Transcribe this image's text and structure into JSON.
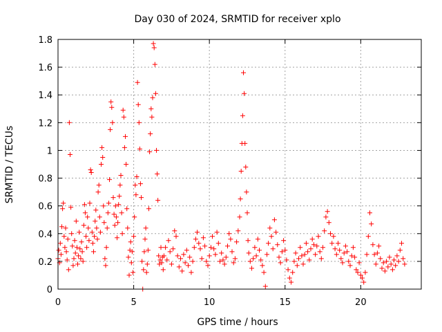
{
  "chart_data": {
    "type": "scatter",
    "title": "Day 030 of 2024, SRMTID for receiver xplo",
    "xlabel": "GPS time / hours",
    "ylabel": "SRMTID / TECUs",
    "xlim": [
      0,
      24
    ],
    "ylim": [
      0,
      1.8
    ],
    "xticks": [
      0,
      5,
      10,
      15,
      20
    ],
    "xtick_labels": [
      "0",
      "5",
      "10",
      "15",
      "20"
    ],
    "yticks": [
      0,
      0.2,
      0.4,
      0.6,
      0.8,
      1,
      1.2,
      1.4,
      1.6,
      1.8
    ],
    "ytick_labels": [
      "0",
      "0.2",
      "0.4",
      "0.6",
      "0.8",
      "1",
      "1.2",
      "1.4",
      "1.6",
      "1.8"
    ],
    "grid": true,
    "marker": "+",
    "color": "#ff0000",
    "series": [
      {
        "name": "SRMTID",
        "points": [
          [
            0.0,
            0.22
          ],
          [
            0.05,
            0.28
          ],
          [
            0.1,
            0.19
          ],
          [
            0.15,
            0.33
          ],
          [
            0.2,
            0.25
          ],
          [
            0.25,
            0.45
          ],
          [
            0.3,
            0.58
          ],
          [
            0.35,
            0.62
          ],
          [
            0.4,
            0.38
          ],
          [
            0.45,
            0.3
          ],
          [
            0.5,
            0.44
          ],
          [
            0.55,
            0.27
          ],
          [
            0.6,
            0.21
          ],
          [
            0.65,
            0.36
          ],
          [
            0.7,
            0.14
          ],
          [
            0.75,
            1.2
          ],
          [
            0.8,
            0.97
          ],
          [
            0.85,
            0.59
          ],
          [
            0.9,
            0.4
          ],
          [
            0.95,
            0.31
          ],
          [
            1.0,
            0.17
          ],
          [
            1.05,
            0.22
          ],
          [
            1.1,
            0.35
          ],
          [
            1.15,
            0.26
          ],
          [
            1.2,
            0.49
          ],
          [
            1.25,
            0.3
          ],
          [
            1.3,
            0.18
          ],
          [
            1.35,
            0.24
          ],
          [
            1.4,
            0.41
          ],
          [
            1.45,
            0.29
          ],
          [
            1.5,
            0.22
          ],
          [
            1.55,
            0.34
          ],
          [
            1.6,
            0.27
          ],
          [
            1.65,
            0.2
          ],
          [
            1.7,
            0.46
          ],
          [
            1.75,
            0.61
          ],
          [
            1.8,
            0.55
          ],
          [
            1.85,
            0.38
          ],
          [
            1.9,
            0.3
          ],
          [
            1.95,
            0.52
          ],
          [
            2.0,
            0.44
          ],
          [
            2.05,
            0.35
          ],
          [
            2.1,
            0.62
          ],
          [
            2.15,
            0.86
          ],
          [
            2.2,
            0.84
          ],
          [
            2.25,
            0.41
          ],
          [
            2.3,
            0.33
          ],
          [
            2.35,
            0.27
          ],
          [
            2.4,
            0.38
          ],
          [
            2.45,
            0.49
          ],
          [
            2.5,
            0.57
          ],
          [
            2.55,
            0.44
          ],
          [
            2.6,
            0.36
          ],
          [
            2.65,
            0.7
          ],
          [
            2.7,
            0.75
          ],
          [
            2.75,
            0.52
          ],
          [
            2.8,
            0.41
          ],
          [
            2.85,
            0.9
          ],
          [
            2.9,
            1.02
          ],
          [
            2.95,
            0.95
          ],
          [
            3.0,
            0.6
          ],
          [
            3.05,
            0.48
          ],
          [
            3.1,
            0.22
          ],
          [
            3.15,
            0.17
          ],
          [
            3.2,
            0.3
          ],
          [
            3.25,
            0.44
          ],
          [
            3.3,
            0.55
          ],
          [
            3.35,
            0.62
          ],
          [
            3.4,
            0.79
          ],
          [
            3.45,
            1.15
          ],
          [
            3.5,
            1.35
          ],
          [
            3.55,
            1.31
          ],
          [
            3.6,
            1.2
          ],
          [
            3.65,
            0.66
          ],
          [
            3.7,
            0.54
          ],
          [
            3.75,
            0.46
          ],
          [
            3.8,
            0.6
          ],
          [
            3.85,
            0.52
          ],
          [
            3.9,
            0.37
          ],
          [
            3.95,
            0.48
          ],
          [
            4.0,
            0.61
          ],
          [
            4.05,
            0.67
          ],
          [
            4.1,
            0.75
          ],
          [
            4.15,
            0.82
          ],
          [
            4.2,
            0.55
          ],
          [
            4.25,
            0.4
          ],
          [
            4.3,
            1.29
          ],
          [
            4.35,
            1.24
          ],
          [
            4.4,
            1.02
          ],
          [
            4.45,
            1.1
          ],
          [
            4.5,
            0.9
          ],
          [
            4.55,
            0.58
          ],
          [
            4.6,
            0.44
          ],
          [
            4.65,
            0.23
          ],
          [
            4.7,
            0.1
          ],
          [
            4.75,
            0.28
          ],
          [
            4.8,
            0.34
          ],
          [
            4.85,
            0.19
          ],
          [
            4.9,
            0.27
          ],
          [
            4.95,
            0.12
          ],
          [
            5.0,
            0.38
          ],
          [
            5.05,
            0.52
          ],
          [
            5.1,
            0.75
          ],
          [
            5.15,
            0.68
          ],
          [
            5.2,
            0.81
          ],
          [
            5.25,
            1.49
          ],
          [
            5.3,
            1.33
          ],
          [
            5.35,
            1.2
          ],
          [
            5.4,
            1.01
          ],
          [
            5.45,
            0.76
          ],
          [
            5.5,
            0.66
          ],
          [
            5.55,
            0.2
          ],
          [
            5.6,
            0.0
          ],
          [
            5.65,
            0.14
          ],
          [
            5.7,
            0.27
          ],
          [
            5.75,
            0.36
          ],
          [
            5.8,
            0.44
          ],
          [
            5.85,
            0.12
          ],
          [
            5.9,
            0.18
          ],
          [
            5.95,
            0.28
          ],
          [
            6.0,
            0.58
          ],
          [
            6.05,
            0.99
          ],
          [
            6.1,
            1.12
          ],
          [
            6.15,
            1.3
          ],
          [
            6.2,
            1.24
          ],
          [
            6.25,
            1.38
          ],
          [
            6.3,
            1.77
          ],
          [
            6.35,
            1.74
          ],
          [
            6.4,
            1.62
          ],
          [
            6.45,
            1.41
          ],
          [
            6.5,
            1.0
          ],
          [
            6.55,
            0.83
          ],
          [
            6.6,
            0.64
          ],
          [
            6.65,
            0.24
          ],
          [
            6.7,
            0.18
          ],
          [
            6.75,
            0.21
          ],
          [
            6.8,
            0.3
          ],
          [
            6.85,
            0.19
          ],
          [
            6.9,
            0.23
          ],
          [
            6.95,
            0.14
          ],
          [
            7.0,
            0.24
          ],
          [
            7.1,
            0.3
          ],
          [
            7.2,
            0.21
          ],
          [
            7.3,
            0.35
          ],
          [
            7.4,
            0.27
          ],
          [
            7.5,
            0.18
          ],
          [
            7.6,
            0.29
          ],
          [
            7.7,
            0.42
          ],
          [
            7.8,
            0.38
          ],
          [
            7.9,
            0.24
          ],
          [
            8.0,
            0.16
          ],
          [
            8.1,
            0.22
          ],
          [
            8.2,
            0.13
          ],
          [
            8.3,
            0.25
          ],
          [
            8.4,
            0.19
          ],
          [
            8.5,
            0.28
          ],
          [
            8.6,
            0.17
          ],
          [
            8.7,
            0.23
          ],
          [
            8.8,
            0.12
          ],
          [
            8.9,
            0.2
          ],
          [
            9.0,
            0.3
          ],
          [
            9.1,
            0.36
          ],
          [
            9.2,
            0.41
          ],
          [
            9.3,
            0.33
          ],
          [
            9.4,
            0.29
          ],
          [
            9.5,
            0.22
          ],
          [
            9.6,
            0.37
          ],
          [
            9.7,
            0.31
          ],
          [
            9.8,
            0.2
          ],
          [
            9.9,
            0.17
          ],
          [
            10.0,
            0.24
          ],
          [
            10.1,
            0.3
          ],
          [
            10.2,
            0.38
          ],
          [
            10.3,
            0.29
          ],
          [
            10.4,
            0.25
          ],
          [
            10.5,
            0.41
          ],
          [
            10.6,
            0.33
          ],
          [
            10.7,
            0.2
          ],
          [
            10.8,
            0.26
          ],
          [
            10.9,
            0.21
          ],
          [
            11.0,
            0.18
          ],
          [
            11.1,
            0.23
          ],
          [
            11.2,
            0.31
          ],
          [
            11.3,
            0.4
          ],
          [
            11.4,
            0.36
          ],
          [
            11.5,
            0.27
          ],
          [
            11.6,
            0.19
          ],
          [
            11.7,
            0.22
          ],
          [
            11.8,
            0.34
          ],
          [
            11.9,
            0.42
          ],
          [
            12.0,
            0.52
          ],
          [
            12.05,
            0.65
          ],
          [
            12.1,
            0.85
          ],
          [
            12.15,
            1.05
          ],
          [
            12.2,
            1.25
          ],
          [
            12.25,
            1.56
          ],
          [
            12.3,
            1.41
          ],
          [
            12.35,
            1.05
          ],
          [
            12.4,
            0.88
          ],
          [
            12.45,
            0.7
          ],
          [
            12.5,
            0.55
          ],
          [
            12.55,
            0.35
          ],
          [
            12.6,
            0.26
          ],
          [
            12.7,
            0.2
          ],
          [
            12.8,
            0.15
          ],
          [
            12.9,
            0.22
          ],
          [
            13.0,
            0.3
          ],
          [
            13.1,
            0.24
          ],
          [
            13.2,
            0.36
          ],
          [
            13.3,
            0.28
          ],
          [
            13.4,
            0.21
          ],
          [
            13.5,
            0.17
          ],
          [
            13.6,
            0.12
          ],
          [
            13.7,
            0.02
          ],
          [
            13.8,
            0.25
          ],
          [
            13.9,
            0.33
          ],
          [
            14.0,
            0.44
          ],
          [
            14.1,
            0.38
          ],
          [
            14.2,
            0.29
          ],
          [
            14.3,
            0.5
          ],
          [
            14.4,
            0.41
          ],
          [
            14.5,
            0.32
          ],
          [
            14.6,
            0.23
          ],
          [
            14.7,
            0.19
          ],
          [
            14.8,
            0.27
          ],
          [
            14.9,
            0.35
          ],
          [
            15.0,
            0.28
          ],
          [
            15.1,
            0.21
          ],
          [
            15.2,
            0.14
          ],
          [
            15.3,
            0.08
          ],
          [
            15.4,
            0.05
          ],
          [
            15.5,
            0.12
          ],
          [
            15.6,
            0.2
          ],
          [
            15.7,
            0.26
          ],
          [
            15.8,
            0.17
          ],
          [
            15.9,
            0.22
          ],
          [
            16.0,
            0.3
          ],
          [
            16.1,
            0.24
          ],
          [
            16.2,
            0.18
          ],
          [
            16.3,
            0.25
          ],
          [
            16.4,
            0.33
          ],
          [
            16.5,
            0.27
          ],
          [
            16.6,
            0.21
          ],
          [
            16.7,
            0.29
          ],
          [
            16.8,
            0.36
          ],
          [
            16.9,
            0.32
          ],
          [
            17.0,
            0.25
          ],
          [
            17.1,
            0.31
          ],
          [
            17.2,
            0.38
          ],
          [
            17.3,
            0.27
          ],
          [
            17.4,
            0.22
          ],
          [
            17.5,
            0.3
          ],
          [
            17.6,
            0.42
          ],
          [
            17.7,
            0.52
          ],
          [
            17.8,
            0.56
          ],
          [
            17.9,
            0.48
          ],
          [
            18.0,
            0.4
          ],
          [
            18.1,
            0.33
          ],
          [
            18.2,
            0.38
          ],
          [
            18.3,
            0.29
          ],
          [
            18.4,
            0.25
          ],
          [
            18.5,
            0.33
          ],
          [
            18.6,
            0.28
          ],
          [
            18.7,
            0.22
          ],
          [
            18.8,
            0.19
          ],
          [
            18.9,
            0.26
          ],
          [
            19.0,
            0.31
          ],
          [
            19.1,
            0.27
          ],
          [
            19.2,
            0.2
          ],
          [
            19.3,
            0.17
          ],
          [
            19.4,
            0.24
          ],
          [
            19.5,
            0.3
          ],
          [
            19.6,
            0.23
          ],
          [
            19.7,
            0.14
          ],
          [
            19.8,
            0.12
          ],
          [
            19.9,
            0.19
          ],
          [
            20.0,
            0.1
          ],
          [
            20.1,
            0.08
          ],
          [
            20.2,
            0.05
          ],
          [
            20.3,
            0.12
          ],
          [
            20.4,
            0.25
          ],
          [
            20.5,
            0.38
          ],
          [
            20.6,
            0.55
          ],
          [
            20.7,
            0.47
          ],
          [
            20.8,
            0.32
          ],
          [
            20.9,
            0.25
          ],
          [
            21.0,
            0.18
          ],
          [
            21.1,
            0.26
          ],
          [
            21.2,
            0.31
          ],
          [
            21.3,
            0.22
          ],
          [
            21.4,
            0.15
          ],
          [
            21.5,
            0.19
          ],
          [
            21.6,
            0.13
          ],
          [
            21.7,
            0.2
          ],
          [
            21.8,
            0.16
          ],
          [
            21.9,
            0.23
          ],
          [
            22.0,
            0.18
          ],
          [
            22.1,
            0.14
          ],
          [
            22.2,
            0.21
          ],
          [
            22.3,
            0.17
          ],
          [
            22.4,
            0.24
          ],
          [
            22.5,
            0.2
          ],
          [
            22.6,
            0.28
          ],
          [
            22.7,
            0.33
          ],
          [
            22.8,
            0.22
          ],
          [
            22.9,
            0.18
          ]
        ]
      }
    ]
  }
}
